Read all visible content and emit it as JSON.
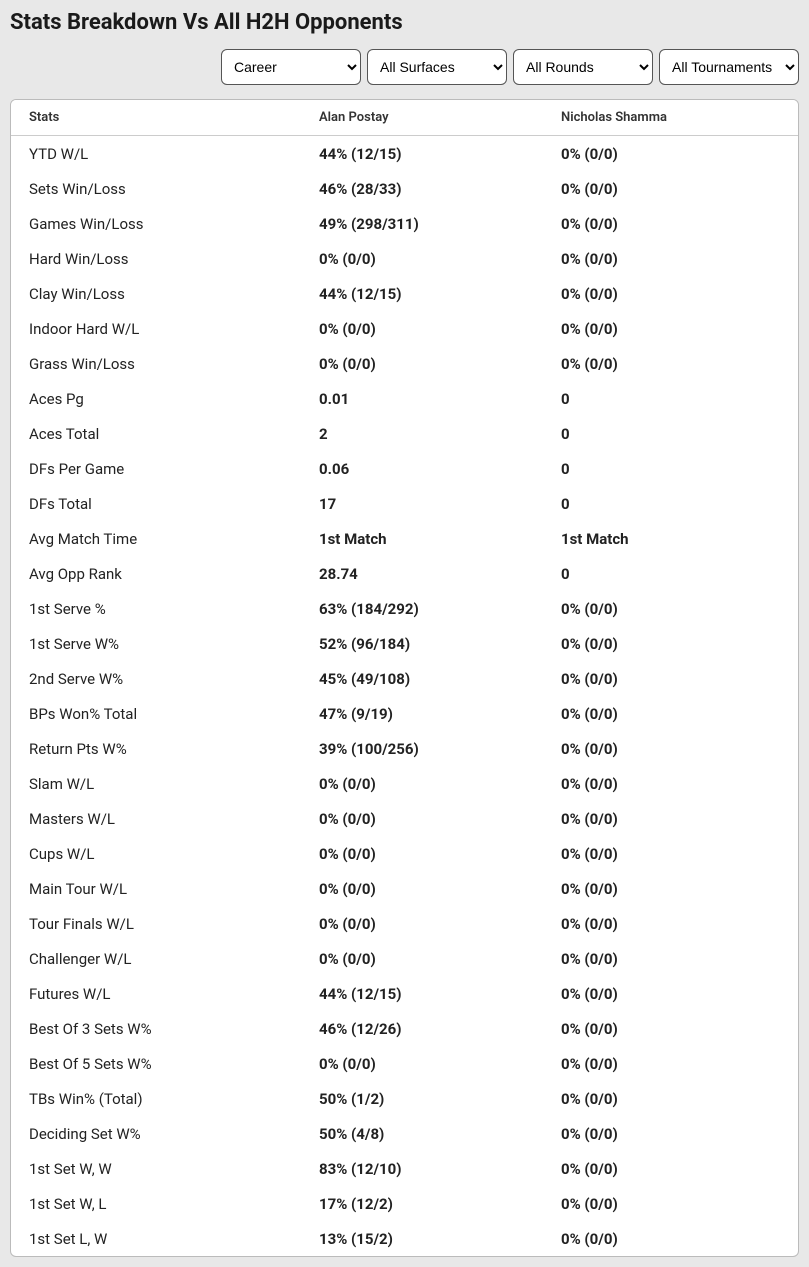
{
  "title": "Stats Breakdown Vs All H2H Opponents",
  "filters": {
    "career": "Career",
    "surfaces": "All Surfaces",
    "rounds": "All Rounds",
    "tournaments": "All Tournaments"
  },
  "columns": {
    "stats": "Stats",
    "player1": "Alan Postay",
    "player2": "Nicholas Shamma"
  },
  "rows": [
    {
      "stat": "YTD W/L",
      "p1": "44% (12/15)",
      "p2": "0% (0/0)"
    },
    {
      "stat": "Sets Win/Loss",
      "p1": "46% (28/33)",
      "p2": "0% (0/0)"
    },
    {
      "stat": "Games Win/Loss",
      "p1": "49% (298/311)",
      "p2": "0% (0/0)"
    },
    {
      "stat": "Hard Win/Loss",
      "p1": "0% (0/0)",
      "p2": "0% (0/0)"
    },
    {
      "stat": "Clay Win/Loss",
      "p1": "44% (12/15)",
      "p2": "0% (0/0)"
    },
    {
      "stat": "Indoor Hard W/L",
      "p1": "0% (0/0)",
      "p2": "0% (0/0)"
    },
    {
      "stat": "Grass Win/Loss",
      "p1": "0% (0/0)",
      "p2": "0% (0/0)"
    },
    {
      "stat": "Aces Pg",
      "p1": "0.01",
      "p2": "0"
    },
    {
      "stat": "Aces Total",
      "p1": "2",
      "p2": "0"
    },
    {
      "stat": "DFs Per Game",
      "p1": "0.06",
      "p2": "0"
    },
    {
      "stat": "DFs Total",
      "p1": "17",
      "p2": "0"
    },
    {
      "stat": "Avg Match Time",
      "p1": "1st Match",
      "p2": "1st Match"
    },
    {
      "stat": "Avg Opp Rank",
      "p1": "28.74",
      "p2": "0"
    },
    {
      "stat": "1st Serve %",
      "p1": "63% (184/292)",
      "p2": "0% (0/0)"
    },
    {
      "stat": "1st Serve W%",
      "p1": "52% (96/184)",
      "p2": "0% (0/0)"
    },
    {
      "stat": "2nd Serve W%",
      "p1": "45% (49/108)",
      "p2": "0% (0/0)"
    },
    {
      "stat": "BPs Won% Total",
      "p1": "47% (9/19)",
      "p2": "0% (0/0)"
    },
    {
      "stat": "Return Pts W%",
      "p1": "39% (100/256)",
      "p2": "0% (0/0)"
    },
    {
      "stat": "Slam W/L",
      "p1": "0% (0/0)",
      "p2": "0% (0/0)"
    },
    {
      "stat": "Masters W/L",
      "p1": "0% (0/0)",
      "p2": "0% (0/0)"
    },
    {
      "stat": "Cups W/L",
      "p1": "0% (0/0)",
      "p2": "0% (0/0)"
    },
    {
      "stat": "Main Tour W/L",
      "p1": "0% (0/0)",
      "p2": "0% (0/0)"
    },
    {
      "stat": "Tour Finals W/L",
      "p1": "0% (0/0)",
      "p2": "0% (0/0)"
    },
    {
      "stat": "Challenger W/L",
      "p1": "0% (0/0)",
      "p2": "0% (0/0)"
    },
    {
      "stat": "Futures W/L",
      "p1": "44% (12/15)",
      "p2": "0% (0/0)"
    },
    {
      "stat": "Best Of 3 Sets W%",
      "p1": "46% (12/26)",
      "p2": "0% (0/0)"
    },
    {
      "stat": "Best Of 5 Sets W%",
      "p1": "0% (0/0)",
      "p2": "0% (0/0)"
    },
    {
      "stat": "TBs Win% (Total)",
      "p1": "50% (1/2)",
      "p2": "0% (0/0)"
    },
    {
      "stat": "Deciding Set W%",
      "p1": "50% (4/8)",
      "p2": "0% (0/0)"
    },
    {
      "stat": "1st Set W, W",
      "p1": "83% (12/10)",
      "p2": "0% (0/0)"
    },
    {
      "stat": "1st Set W, L",
      "p1": "17% (12/2)",
      "p2": "0% (0/0)"
    },
    {
      "stat": "1st Set L, W",
      "p1": "13% (15/2)",
      "p2": "0% (0/0)"
    }
  ]
}
